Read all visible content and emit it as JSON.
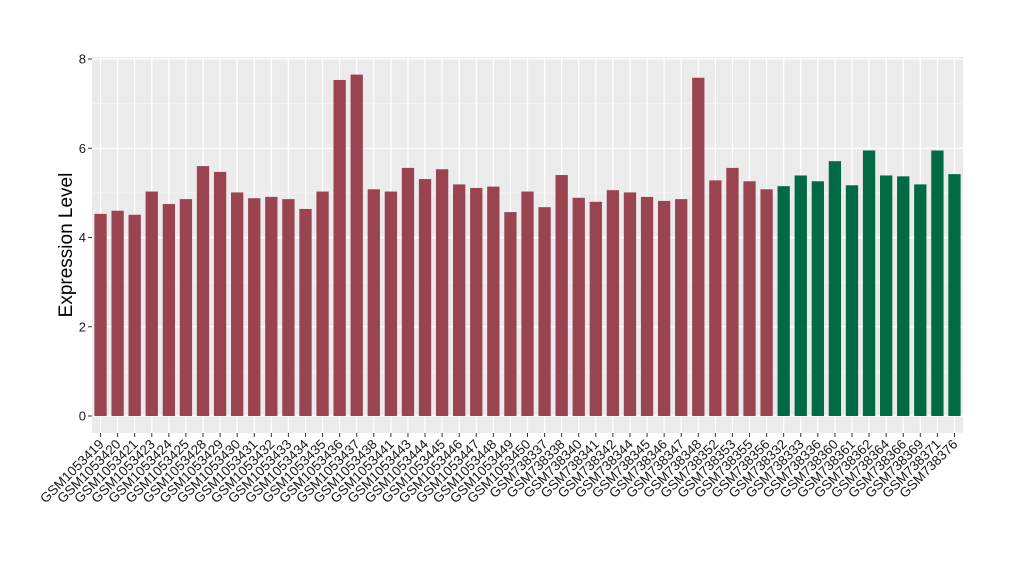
{
  "colors": {
    "panel_background": "#ebebeb",
    "grid_major": "#ffffff",
    "grid_minor": "#f5f5f5",
    "group_1": "#9b4451",
    "group_2": "#006a45",
    "axis_tick": "#333333"
  },
  "chart_data": {
    "type": "bar",
    "ylabel": "Expression Level",
    "xlabel": "",
    "ylim": [
      0,
      8
    ],
    "yticks": [
      0,
      2,
      4,
      6,
      8
    ],
    "grid": true,
    "legend": "none",
    "categories": [
      "GSM1053419",
      "GSM1053420",
      "GSM1053421",
      "GSM1053423",
      "GSM1053424",
      "GSM1053425",
      "GSM1053428",
      "GSM1053429",
      "GSM1053430",
      "GSM1053431",
      "GSM1053432",
      "GSM1053433",
      "GSM1053434",
      "GSM1053435",
      "GSM1053436",
      "GSM1053437",
      "GSM1053438",
      "GSM1053441",
      "GSM1053443",
      "GSM1053444",
      "GSM1053445",
      "GSM1053446",
      "GSM1053447",
      "GSM1053448",
      "GSM1053449",
      "GSM1053450",
      "GSM738337",
      "GSM738338",
      "GSM738340",
      "GSM738341",
      "GSM738342",
      "GSM738344",
      "GSM738345",
      "GSM738346",
      "GSM738347",
      "GSM738348",
      "GSM738352",
      "GSM738353",
      "GSM738355",
      "GSM738356",
      "GSM738332",
      "GSM738333",
      "GSM738336",
      "GSM738360",
      "GSM738361",
      "GSM738362",
      "GSM738364",
      "GSM738366",
      "GSM738369",
      "GSM738371",
      "GSM738376"
    ],
    "values": [
      4.53,
      4.6,
      4.51,
      5.03,
      4.75,
      4.86,
      5.6,
      5.47,
      5.01,
      4.88,
      4.91,
      4.86,
      4.64,
      5.03,
      7.53,
      7.65,
      5.08,
      5.03,
      5.56,
      5.31,
      5.53,
      5.19,
      5.11,
      5.14,
      4.57,
      5.03,
      4.68,
      5.4,
      4.89,
      4.8,
      5.06,
      5.01,
      4.91,
      4.82,
      4.86,
      7.58,
      5.28,
      5.56,
      5.26,
      5.08,
      5.15,
      5.39,
      5.26,
      5.71,
      5.17,
      5.95,
      5.39,
      5.37,
      5.19,
      5.95,
      5.42
    ],
    "groups": [
      1,
      1,
      1,
      1,
      1,
      1,
      1,
      1,
      1,
      1,
      1,
      1,
      1,
      1,
      1,
      1,
      1,
      1,
      1,
      1,
      1,
      1,
      1,
      1,
      1,
      1,
      1,
      1,
      1,
      1,
      1,
      1,
      1,
      1,
      1,
      1,
      1,
      1,
      1,
      1,
      2,
      2,
      2,
      2,
      2,
      2,
      2,
      2,
      2,
      2,
      2
    ]
  }
}
